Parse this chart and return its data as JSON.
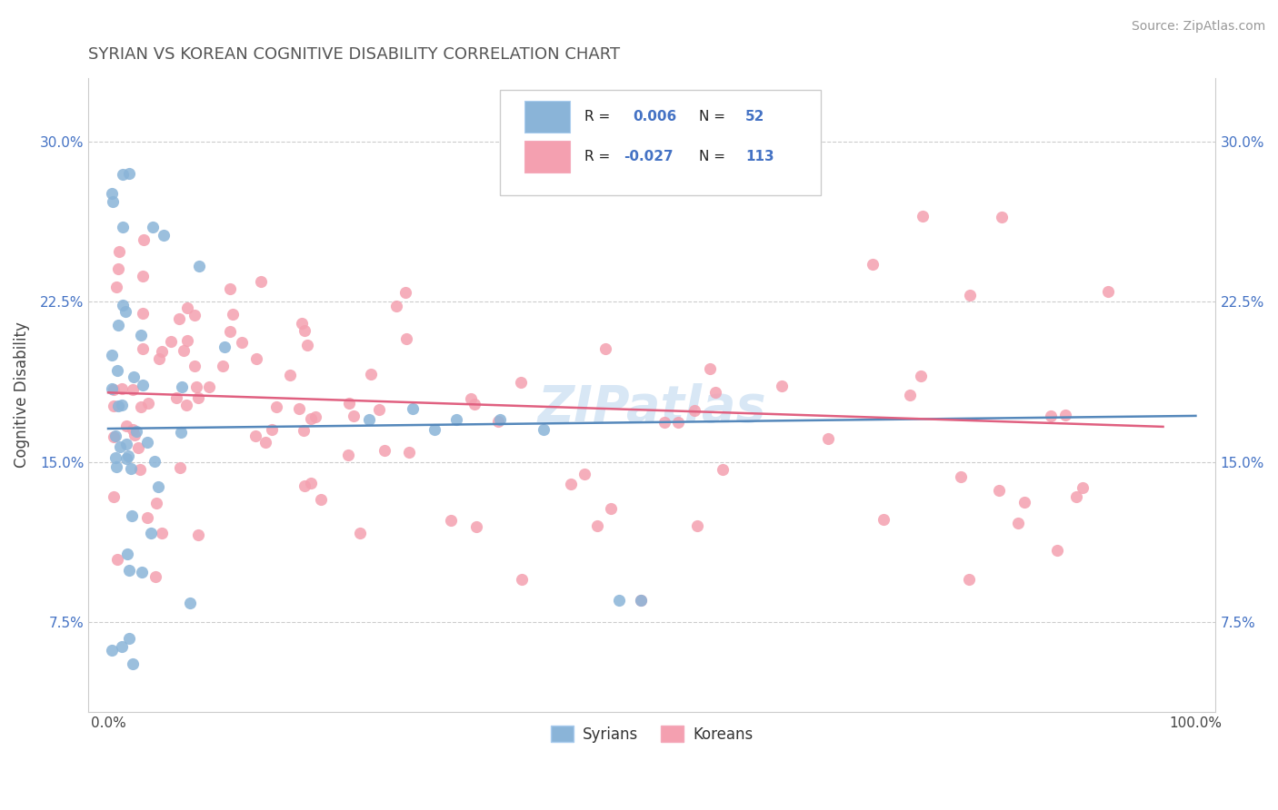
{
  "title": "SYRIAN VS KOREAN COGNITIVE DISABILITY CORRELATION CHART",
  "source": "Source: ZipAtlas.com",
  "ylabel": "Cognitive Disability",
  "syrians_R": "0.006",
  "syrians_N": "52",
  "koreans_R": "-0.027",
  "koreans_N": "113",
  "syrian_dot_color": "#8ab4d8",
  "korean_dot_color": "#f4a0b0",
  "syrian_line_color": "#5588bb",
  "korean_line_color": "#e06080",
  "watermark": "ZIPatlas",
  "legend_label_syrian": "Syrians",
  "legend_label_korean": "Koreans",
  "title_color": "#555555",
  "source_color": "#999999",
  "tick_color": "#4472c4",
  "ylabel_color": "#444444",
  "grid_color": "#cccccc"
}
